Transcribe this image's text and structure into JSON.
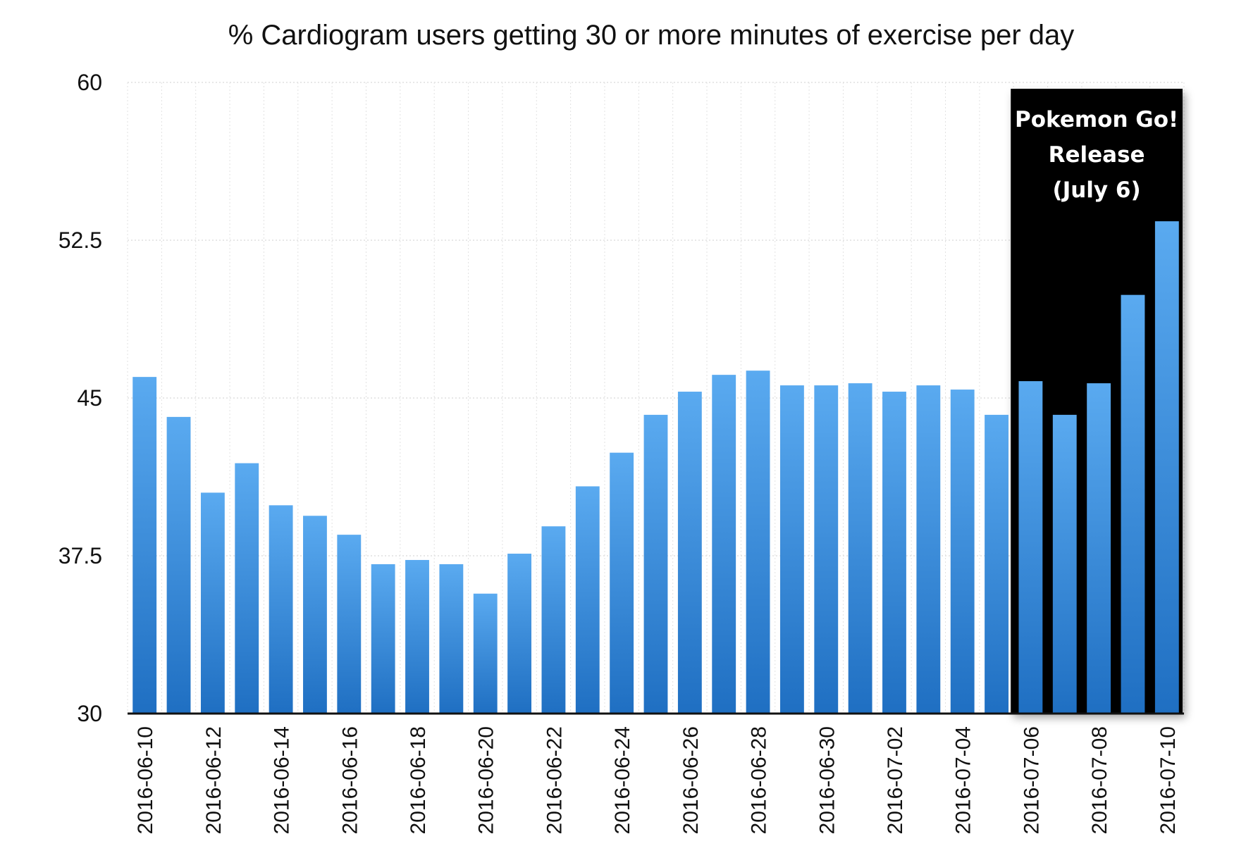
{
  "chart_data": {
    "type": "bar",
    "title": "% Cardiogram users getting 30 or more minutes of exercise per day",
    "xlabel": "",
    "ylabel": "",
    "ylim": [
      30,
      60
    ],
    "yticks": [
      "30",
      "37.5",
      "45",
      "52.5",
      "60"
    ],
    "grid": true,
    "categories": [
      "2016-06-10",
      "2016-06-11",
      "2016-06-12",
      "2016-06-13",
      "2016-06-14",
      "2016-06-15",
      "2016-06-16",
      "2016-06-17",
      "2016-06-18",
      "2016-06-19",
      "2016-06-20",
      "2016-06-21",
      "2016-06-22",
      "2016-06-23",
      "2016-06-24",
      "2016-06-25",
      "2016-06-26",
      "2016-06-27",
      "2016-06-28",
      "2016-06-29",
      "2016-06-30",
      "2016-07-01",
      "2016-07-02",
      "2016-07-03",
      "2016-07-04",
      "2016-07-05",
      "2016-07-06",
      "2016-07-07",
      "2016-07-08",
      "2016-07-09",
      "2016-07-10"
    ],
    "xtick_labels": [
      "2016-06-10",
      "",
      "2016-06-12",
      "",
      "2016-06-14",
      "",
      "2016-06-16",
      "",
      "2016-06-18",
      "",
      "2016-06-20",
      "",
      "2016-06-22",
      "",
      "2016-06-24",
      "",
      "2016-06-26",
      "",
      "2016-06-28",
      "",
      "2016-06-30",
      "",
      "2016-07-02",
      "",
      "2016-07-04",
      "",
      "2016-07-06",
      "",
      "2016-07-08",
      "",
      "2016-07-10"
    ],
    "values": [
      46.0,
      44.1,
      40.5,
      41.9,
      39.9,
      39.4,
      38.5,
      37.1,
      37.3,
      37.1,
      35.7,
      37.6,
      38.9,
      40.8,
      42.4,
      44.2,
      45.3,
      46.1,
      46.3,
      45.6,
      45.6,
      45.7,
      45.3,
      45.6,
      45.4,
      44.2,
      45.8,
      44.2,
      45.7,
      49.9,
      53.4
    ],
    "bar_color_top": "#5aaaf0",
    "bar_color_bottom": "#1f6fc2",
    "annotation": {
      "lines": [
        "Pokemon Go!",
        "Release",
        "(July 6)"
      ],
      "from_category": "2016-07-06",
      "to_category": "2016-07-10",
      "background": "#000000",
      "text_color": "#ffffff"
    }
  }
}
